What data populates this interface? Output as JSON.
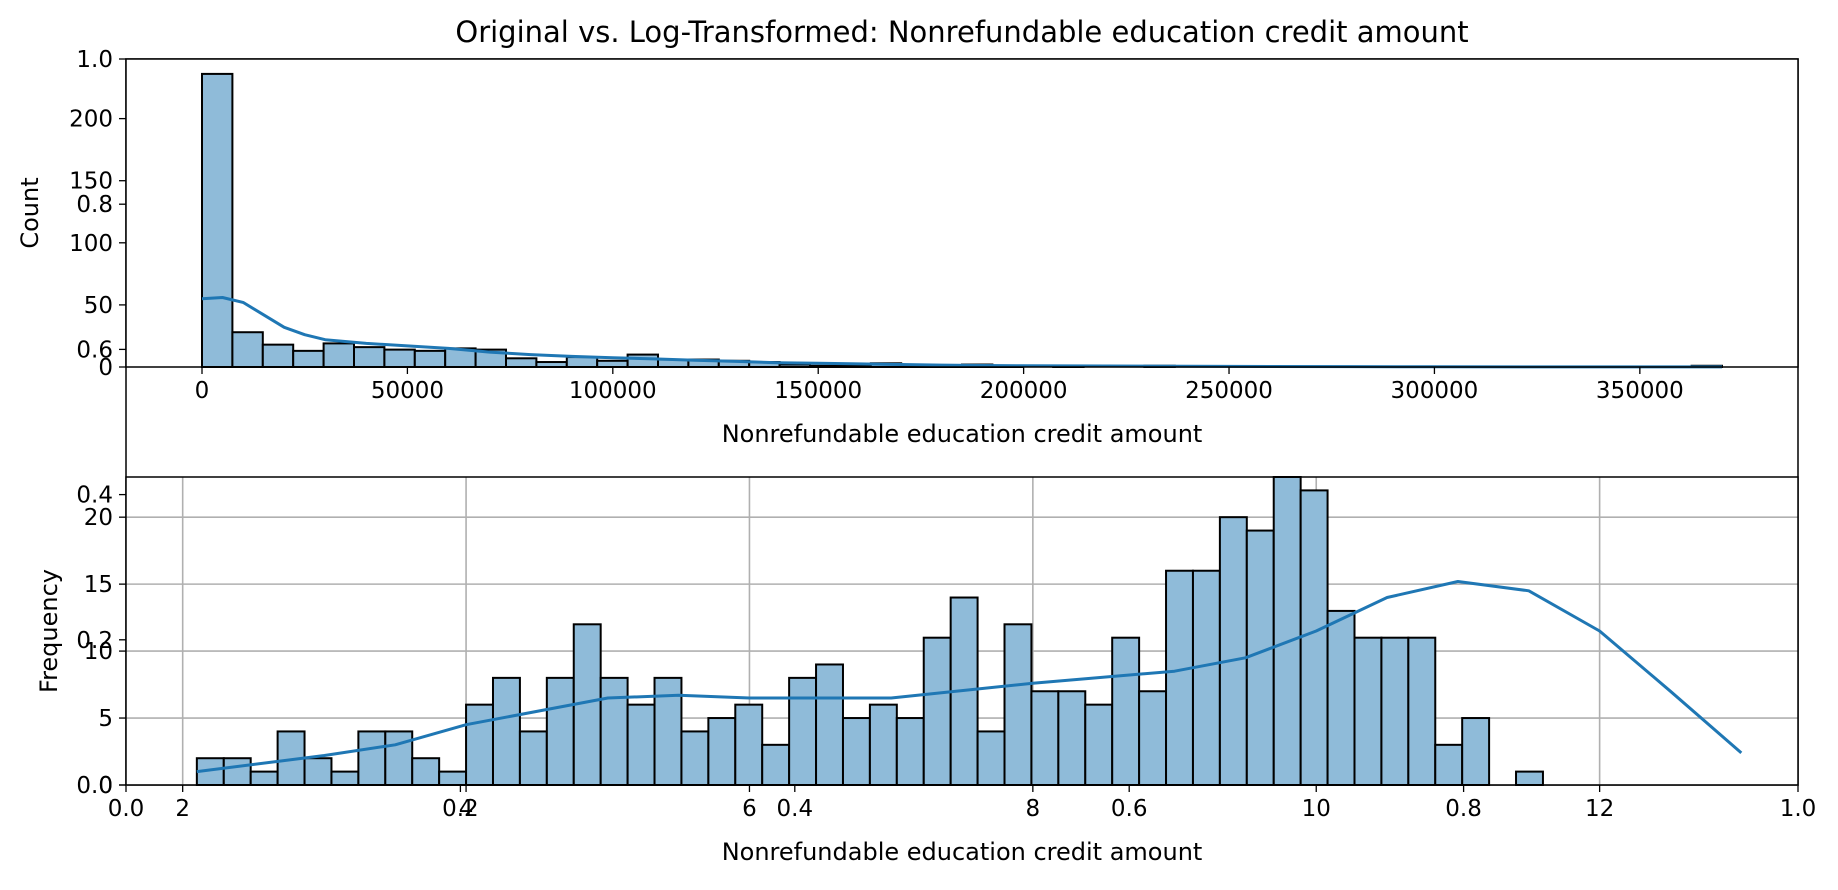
{
  "figure": {
    "title": "Original vs. Log-Transformed: Nonrefundable education credit amount"
  },
  "colors": {
    "bar_fill": "#8fbbd9",
    "bar_edge": "#000000",
    "kde_line": "#1f77b4",
    "grid": "#b0b0b0"
  },
  "background_axes": {
    "x_ticks": [
      "0.0",
      "0.2",
      "0.4",
      "0.6",
      "0.8",
      "1.0"
    ],
    "y_ticks": [
      "0.0",
      "0.2",
      "0.4",
      "0.6",
      "0.8",
      "1.0"
    ]
  },
  "chart_data": [
    {
      "type": "bar",
      "title": "",
      "xlabel": "Nonrefundable education credit amount",
      "ylabel": "Count",
      "xlim": [
        -18500,
        388500
      ],
      "ylim": [
        0,
        248
      ],
      "x_ticks": [
        0,
        50000,
        100000,
        150000,
        200000,
        250000,
        300000,
        350000
      ],
      "x_tick_labels": [
        "0",
        "50000",
        "100000",
        "150000",
        "200000",
        "250000",
        "300000",
        "350000"
      ],
      "y_ticks": [
        0,
        50,
        100,
        150,
        200
      ],
      "y_tick_labels": [
        "0",
        "50",
        "100",
        "150",
        "200"
      ],
      "grid": false,
      "bin_start": 0,
      "bin_width": 7400,
      "counts": [
        236,
        28,
        18,
        13,
        19,
        16,
        14,
        13,
        15,
        14,
        7,
        4,
        8,
        5,
        10,
        6,
        6,
        5,
        4,
        2,
        1,
        1,
        3,
        1,
        1,
        2,
        1,
        0,
        1,
        0,
        0,
        1,
        0,
        0,
        0,
        0,
        0,
        0,
        0,
        0,
        0,
        0,
        0,
        0,
        0,
        0,
        0,
        0,
        0,
        1
      ],
      "kde": {
        "x": [
          0,
          5000,
          10000,
          15000,
          20000,
          25000,
          30000,
          40000,
          50000,
          60000,
          70000,
          80000,
          90000,
          100000,
          110000,
          120000,
          130000,
          140000,
          150000,
          160000,
          170000,
          180000,
          190000,
          200000,
          220000,
          240000,
          260000,
          280000,
          300000,
          330000,
          370000
        ],
        "y": [
          55,
          56,
          52,
          42,
          32,
          26,
          22,
          19,
          17,
          15,
          12,
          10,
          8.5,
          7.5,
          6.5,
          5.5,
          4.5,
          3.5,
          3.0,
          2.5,
          2.0,
          1.5,
          1.2,
          1.0,
          0.8,
          0.6,
          0.4,
          0.3,
          0.2,
          0.1,
          0.05
        ]
      }
    },
    {
      "type": "bar",
      "title": "",
      "xlabel": "Nonrefundable education credit amount",
      "ylabel": "Frequency",
      "xlim": [
        1.6,
        13.4
      ],
      "ylim": [
        0,
        23
      ],
      "x_ticks": [
        2,
        4,
        6,
        8,
        10,
        12
      ],
      "x_tick_labels": [
        "2",
        "4",
        "6",
        "8",
        "10",
        "12"
      ],
      "y_ticks": [
        0,
        5,
        10,
        15,
        20
      ],
      "y_tick_labels": [
        "0",
        "5",
        "10",
        "15",
        "20"
      ],
      "grid": true,
      "bin_start": 2.1,
      "bin_width": 0.19,
      "counts": [
        2,
        2,
        1,
        4,
        2,
        1,
        4,
        4,
        2,
        1,
        6,
        8,
        4,
        8,
        12,
        8,
        6,
        8,
        4,
        5,
        6,
        3,
        8,
        9,
        5,
        6,
        5,
        11,
        14,
        4,
        12,
        7,
        7,
        6,
        11,
        7,
        16,
        16,
        20,
        19,
        23,
        22,
        13,
        11,
        11,
        11,
        3,
        5,
        0,
        1
      ],
      "kde": {
        "x": [
          2.1,
          3.0,
          3.5,
          4.0,
          5.0,
          5.5,
          6.0,
          7.0,
          8.0,
          9.0,
          9.5,
          10.0,
          10.5,
          11.0,
          11.5,
          12.0,
          12.5,
          13.0
        ],
        "y": [
          1.0,
          2.2,
          3.0,
          4.5,
          6.5,
          6.7,
          6.5,
          6.5,
          7.6,
          8.5,
          9.5,
          11.5,
          14.0,
          15.2,
          14.5,
          11.5,
          7.0,
          2.4
        ]
      }
    }
  ]
}
